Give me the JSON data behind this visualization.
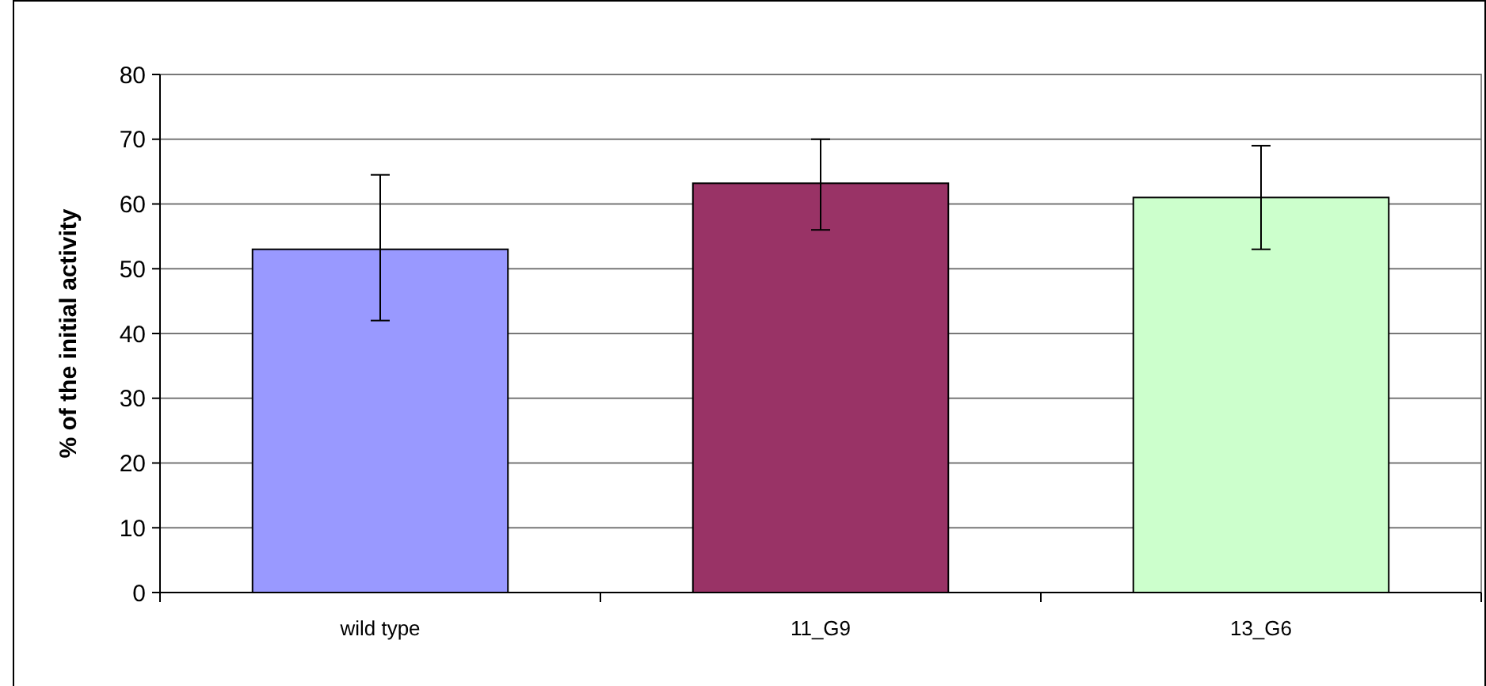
{
  "chart_data": {
    "type": "bar",
    "ylabel": "% of the initial activity",
    "categories": [
      "wild type",
      "11_G9",
      "13_G6"
    ],
    "values": [
      53,
      63.2,
      61
    ],
    "colors": [
      "#9999ff",
      "#993366",
      "#ccffcc"
    ],
    "errors": [
      [
        42,
        64.5
      ],
      [
        56,
        70
      ],
      [
        53,
        69
      ]
    ],
    "ylim": [
      0,
      80
    ],
    "yticks": [
      0,
      10,
      20,
      30,
      40,
      50,
      60,
      70,
      80
    ],
    "grid": "y"
  }
}
